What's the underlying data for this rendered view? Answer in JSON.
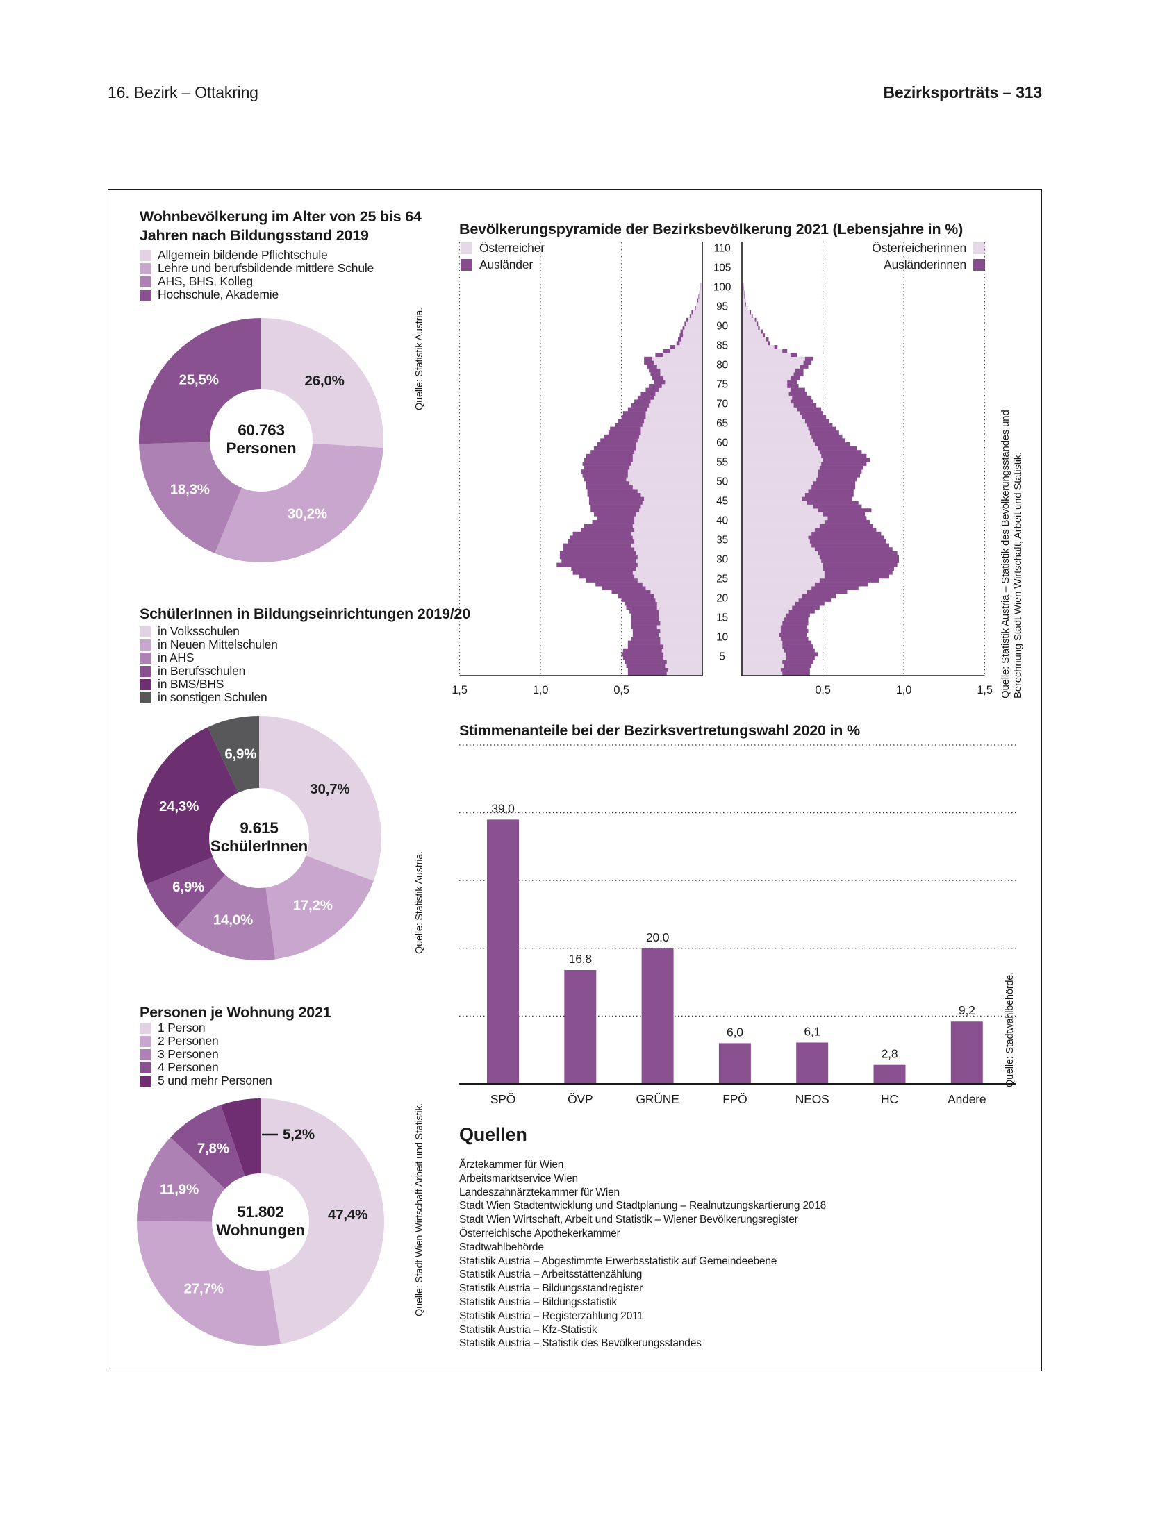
{
  "page": {
    "header_left": "16. Bezirk – Ottakring",
    "header_right": "Bezirksporträts – 313"
  },
  "colors": {
    "purple_lightest": "#E3D2E4",
    "purple_light": "#C9A6CD",
    "purple_mid": "#AD81B3",
    "purple_dark": "#8A5191",
    "purple_darkest": "#6C2F6F",
    "purple_deep": "#6F2E71",
    "gray": "#58585A",
    "pyramid_austrian": "#E6D8E8",
    "pyramid_foreign": "#874C8E",
    "bar": "#8A5191"
  },
  "chart_data": [
    {
      "id": "education",
      "type": "pie",
      "title_line1": "Wohnbevölkerung im Alter von 25 bis 64",
      "title_line2": "Jahren nach Bildungsstand 2019",
      "center_value": "60.763",
      "center_label": "Personen",
      "source": "Quelle: Statistik Austria.",
      "legend": [
        {
          "label": "Allgemein bildende Pflichtschule",
          "color": "#E3D2E4"
        },
        {
          "label": "Lehre und berufsbildende mittlere Schule",
          "color": "#C9A6CD"
        },
        {
          "label": "AHS, BHS, Kolleg",
          "color": "#AD81B3"
        },
        {
          "label": "Hochschule, Akademie",
          "color": "#8A5191"
        }
      ],
      "slices": [
        {
          "label": "26,0%",
          "value": 26.0,
          "color": "#E3D2E4",
          "dark_text": true
        },
        {
          "label": "30,2%",
          "value": 30.2,
          "color": "#C9A6CD"
        },
        {
          "label": "18,3%",
          "value": 18.3,
          "color": "#AD81B3"
        },
        {
          "label": "25,5%",
          "value": 25.5,
          "color": "#8A5191"
        }
      ]
    },
    {
      "id": "pyramid",
      "type": "population-pyramid",
      "title": "Bevölkerungspyramide der Bezirksbevölkerung 2021 (Lebensjahre in %)",
      "legend_left": [
        {
          "label": "Österreicher",
          "color": "#E6D8E8"
        },
        {
          "label": "Ausländer",
          "color": "#874C8E"
        }
      ],
      "legend_right": [
        {
          "label": "Österreicherinnen",
          "color": "#E6D8E8"
        },
        {
          "label": "Ausländerinnen",
          "color": "#874C8E"
        }
      ],
      "source_line1": "Quelle: Statistik Austria – Statistik des Bevölkerungsstandes und",
      "source_line2": "Berechnung Stadt Wien Wirtschaft, Arbeit und Statistik.",
      "x_ticks_left": [
        "1,5",
        "1,0",
        "0,5"
      ],
      "x_ticks_right": [
        "0,5",
        "1,0",
        "1,5"
      ],
      "age_ticks": [
        5,
        10,
        15,
        20,
        25,
        30,
        35,
        40,
        45,
        50,
        55,
        60,
        65,
        70,
        75,
        80,
        85,
        90,
        95,
        100,
        105,
        110
      ],
      "xmax": 1.5,
      "age_from": 0,
      "age_step": 1,
      "men_austrian": [
        0.22,
        0.21,
        0.23,
        0.22,
        0.24,
        0.24,
        0.25,
        0.24,
        0.26,
        0.26,
        0.27,
        0.26,
        0.28,
        0.26,
        0.27,
        0.27,
        0.27,
        0.28,
        0.28,
        0.29,
        0.3,
        0.32,
        0.35,
        0.37,
        0.4,
        0.42,
        0.43,
        0.41,
        0.4,
        0.41,
        0.4,
        0.41,
        0.42,
        0.44,
        0.42,
        0.43,
        0.44,
        0.42,
        0.43,
        0.42,
        0.42,
        0.41,
        0.39,
        0.38,
        0.37,
        0.36,
        0.38,
        0.4,
        0.43,
        0.45,
        0.47,
        0.46,
        0.46,
        0.45,
        0.44,
        0.43,
        0.43,
        0.42,
        0.41,
        0.41,
        0.4,
        0.39,
        0.38,
        0.38,
        0.37,
        0.36,
        0.35,
        0.35,
        0.34,
        0.33,
        0.32,
        0.3,
        0.29,
        0.27,
        0.25,
        0.23,
        0.24,
        0.26,
        0.26,
        0.28,
        0.3,
        0.31,
        0.24,
        0.2,
        0.17,
        0.14,
        0.13,
        0.12,
        0.12,
        0.11,
        0.1,
        0.09,
        0.07,
        0.06,
        0.04,
        0.03,
        0.025,
        0.02,
        0.015,
        0.012,
        0.008
      ],
      "men_foreign": [
        0.24,
        0.25,
        0.24,
        0.26,
        0.25,
        0.26,
        0.24,
        0.22,
        0.2,
        0.18,
        0.16,
        0.17,
        0.16,
        0.18,
        0.17,
        0.17,
        0.18,
        0.19,
        0.2,
        0.21,
        0.22,
        0.24,
        0.27,
        0.29,
        0.32,
        0.34,
        0.37,
        0.4,
        0.5,
        0.46,
        0.48,
        0.47,
        0.44,
        0.42,
        0.41,
        0.39,
        0.36,
        0.33,
        0.3,
        0.26,
        0.23,
        0.26,
        0.3,
        0.31,
        0.33,
        0.34,
        0.33,
        0.31,
        0.29,
        0.27,
        0.26,
        0.28,
        0.29,
        0.28,
        0.3,
        0.3,
        0.29,
        0.27,
        0.26,
        0.24,
        0.23,
        0.22,
        0.2,
        0.19,
        0.17,
        0.16,
        0.15,
        0.14,
        0.12,
        0.11,
        0.1,
        0.1,
        0.09,
        0.08,
        0.08,
        0.07,
        0.07,
        0.06,
        0.07,
        0.06,
        0.06,
        0.05,
        0.05,
        0.04,
        0.03,
        0.02,
        0.02,
        0.02,
        0.015,
        0.012,
        0.01,
        0.01,
        0.008,
        0.007,
        0.006,
        0.005,
        0.005,
        0.004,
        0.003,
        0.003,
        0.002
      ],
      "women_austrian": [
        0.25,
        0.24,
        0.26,
        0.25,
        0.27,
        0.27,
        0.26,
        0.25,
        0.25,
        0.24,
        0.23,
        0.24,
        0.24,
        0.25,
        0.26,
        0.27,
        0.29,
        0.31,
        0.33,
        0.35,
        0.37,
        0.4,
        0.43,
        0.45,
        0.48,
        0.51,
        0.51,
        0.5,
        0.5,
        0.49,
        0.48,
        0.47,
        0.45,
        0.43,
        0.42,
        0.41,
        0.43,
        0.45,
        0.48,
        0.51,
        0.53,
        0.5,
        0.47,
        0.44,
        0.4,
        0.37,
        0.39,
        0.41,
        0.43,
        0.44,
        0.46,
        0.47,
        0.47,
        0.48,
        0.49,
        0.5,
        0.49,
        0.48,
        0.47,
        0.45,
        0.44,
        0.43,
        0.42,
        0.41,
        0.4,
        0.39,
        0.37,
        0.36,
        0.34,
        0.32,
        0.3,
        0.31,
        0.29,
        0.3,
        0.28,
        0.28,
        0.3,
        0.32,
        0.33,
        0.36,
        0.38,
        0.39,
        0.3,
        0.25,
        0.2,
        0.16,
        0.15,
        0.13,
        0.12,
        0.1,
        0.09,
        0.08,
        0.06,
        0.05,
        0.03,
        0.02,
        0.018,
        0.015,
        0.012,
        0.01,
        0.008
      ],
      "women_foreign": [
        0.17,
        0.18,
        0.17,
        0.19,
        0.18,
        0.2,
        0.19,
        0.19,
        0.18,
        0.17,
        0.17,
        0.17,
        0.16,
        0.16,
        0.15,
        0.15,
        0.16,
        0.17,
        0.18,
        0.2,
        0.21,
        0.25,
        0.29,
        0.33,
        0.37,
        0.4,
        0.42,
        0.44,
        0.46,
        0.48,
        0.49,
        0.49,
        0.48,
        0.48,
        0.47,
        0.47,
        0.43,
        0.38,
        0.33,
        0.28,
        0.24,
        0.26,
        0.33,
        0.3,
        0.32,
        0.31,
        0.3,
        0.28,
        0.27,
        0.26,
        0.25,
        0.26,
        0.27,
        0.27,
        0.28,
        0.29,
        0.28,
        0.26,
        0.24,
        0.22,
        0.2,
        0.19,
        0.18,
        0.17,
        0.16,
        0.15,
        0.15,
        0.14,
        0.15,
        0.14,
        0.14,
        0.12,
        0.11,
        0.09,
        0.07,
        0.06,
        0.06,
        0.06,
        0.05,
        0.05,
        0.05,
        0.05,
        0.04,
        0.03,
        0.02,
        0.015,
        0.015,
        0.012,
        0.01,
        0.01,
        0.01,
        0.008,
        0.007,
        0.006,
        0.005,
        0.005,
        0.004,
        0.003,
        0.003,
        0.002,
        0.002
      ]
    },
    {
      "id": "students",
      "type": "pie",
      "title": "SchülerInnen in Bildungseinrichtungen 2019/20",
      "center_value": "9.615",
      "center_label": "SchülerInnen",
      "source": "Quelle: Statistik Austria.",
      "legend": [
        {
          "label": "in Volksschulen",
          "color": "#E3D2E4"
        },
        {
          "label": "in Neuen Mittelschulen",
          "color": "#C9A6CD"
        },
        {
          "label": "in AHS",
          "color": "#AD81B3"
        },
        {
          "label": "in Berufsschulen",
          "color": "#8A5191"
        },
        {
          "label": "in BMS/BHS",
          "color": "#6C2F6F"
        },
        {
          "label": "in sonstigen Schulen",
          "color": "#58585A"
        }
      ],
      "slices": [
        {
          "label": "30,7%",
          "value": 30.7,
          "color": "#E3D2E4",
          "dark_text": true
        },
        {
          "label": "17,2%",
          "value": 17.2,
          "color": "#C9A6CD"
        },
        {
          "label": "14,0%",
          "value": 14.0,
          "color": "#AD81B3"
        },
        {
          "label": "6,9%",
          "value": 6.9,
          "color": "#8A5191"
        },
        {
          "label": "24,3%",
          "value": 24.3,
          "color": "#6C2F6F"
        },
        {
          "label": "6,9%",
          "value": 6.9,
          "color": "#58585A"
        }
      ]
    },
    {
      "id": "election",
      "type": "bar",
      "title": "Stimmenanteile bei der Bezirksvertretungswahl 2020 in %",
      "categories": [
        "SPÖ",
        "ÖVP",
        "GRÜNE",
        "FPÖ",
        "NEOS",
        "HC",
        "Andere"
      ],
      "values": [
        39.0,
        16.8,
        20.0,
        6.0,
        6.1,
        2.8,
        9.2
      ],
      "value_labels": [
        "39,0",
        "16,8",
        "20,0",
        "6,0",
        "6,1",
        "2,8",
        "9,2"
      ],
      "ylim": [
        0,
        50
      ],
      "gridlines": [
        10,
        20,
        30,
        40,
        50
      ],
      "bar_color": "#8A5191",
      "source": "Quelle: Stadtwahlbehörde."
    },
    {
      "id": "apartments",
      "type": "pie",
      "title": "Personen je Wohnung 2021",
      "center_value": "51.802",
      "center_label": "Wohnungen",
      "source": "Quelle: Stadt Wien Wirtschaft Arbeit und Statistik.",
      "legend": [
        {
          "label": "1 Person",
          "color": "#E3D2E4"
        },
        {
          "label": "2 Personen",
          "color": "#C9A6CD"
        },
        {
          "label": "3 Personen",
          "color": "#AD81B3"
        },
        {
          "label": "4 Personen",
          "color": "#8A5191"
        },
        {
          "label": "5 und mehr Personen",
          "color": "#6F2E71"
        }
      ],
      "slices": [
        {
          "label": "47,4%",
          "value": 47.4,
          "color": "#E3D2E4",
          "dark_text": true
        },
        {
          "label": "27,7%",
          "value": 27.7,
          "color": "#C9A6CD"
        },
        {
          "label": "11,9%",
          "value": 11.9,
          "color": "#AD81B3"
        },
        {
          "label": "7,8%",
          "value": 7.8,
          "color": "#8A5191"
        },
        {
          "label": "5,2%",
          "value": 5.2,
          "color": "#6F2E71",
          "outside": true,
          "dark_text": true
        }
      ]
    }
  ],
  "quellen": {
    "title": "Quellen",
    "items": [
      "Ärztekammer für Wien",
      "Arbeitsmarktservice Wien",
      "Landeszahnärztekammer für Wien",
      "Stadt Wien Stadtentwicklung und Stadtplanung – Realnutzungskartierung 2018",
      "Stadt Wien Wirtschaft, Arbeit und Statistik – Wiener Bevölkerungsregister",
      "Österreichische Apothekerkammer",
      "Stadtwahlbehörde",
      "Statistik Austria – Abgestimmte Erwerbsstatistik auf Gemeindeebene",
      "Statistik Austria – Arbeitsstättenzählung",
      "Statistik Austria – Bildungsstandregister",
      "Statistik Austria – Bildungsstatistik",
      "Statistik Austria – Registerzählung 2011",
      "Statistik Austria – Kfz-Statistik",
      "Statistik Austria – Statistik des Bevölkerungsstandes"
    ]
  }
}
